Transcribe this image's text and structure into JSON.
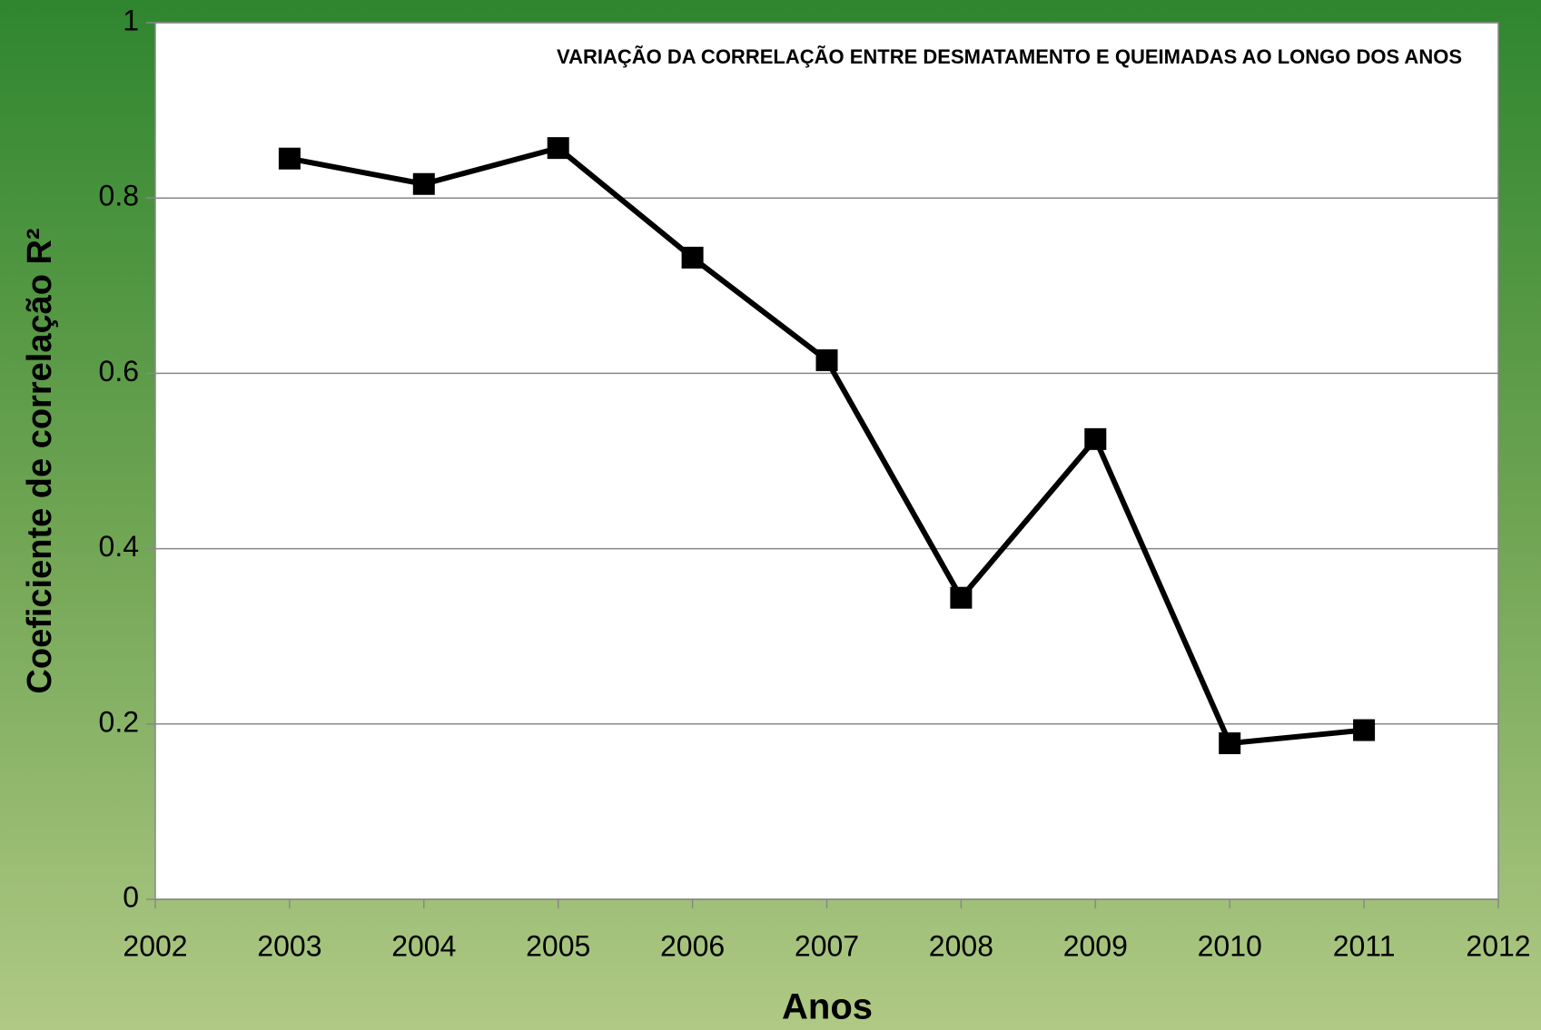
{
  "chart_data": {
    "type": "line",
    "title": "VARIAÇÃO DA CORRELAÇÃO ENTRE DESMATAMENTO E QUEIMADAS AO LONGO DOS ANOS",
    "x_label": "Anos",
    "y_label": "Coeficiente de correlação R²",
    "x": [
      2003,
      2004,
      2005,
      2006,
      2007,
      2008,
      2009,
      2010,
      2011
    ],
    "series": [
      {
        "color": "#000000",
        "values": [
          0.845,
          0.816,
          0.857,
          0.732,
          0.615,
          0.344,
          0.525,
          0.178,
          0.193
        ]
      }
    ],
    "xlim": [
      2002,
      2012
    ],
    "xticks": [
      2002,
      2003,
      2004,
      2005,
      2006,
      2007,
      2008,
      2009,
      2010,
      2011,
      2012
    ],
    "ylim": [
      0,
      1
    ],
    "yticks": [
      0,
      0.2,
      0.4,
      0.6,
      0.8,
      1
    ],
    "grid": true
  }
}
